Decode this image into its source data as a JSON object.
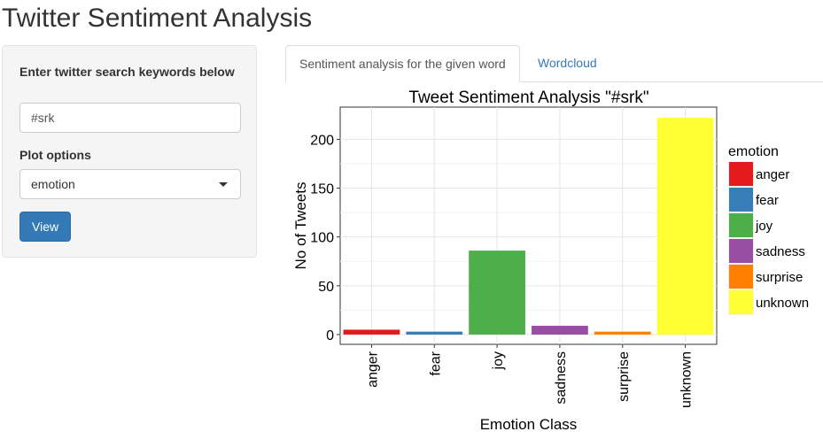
{
  "app": {
    "title": "Twitter Sentiment Analysis"
  },
  "sidebar": {
    "search_label": "Enter twitter search keywords below",
    "search_value": "#srk",
    "plot_options_label": "Plot options",
    "plot_option_selected": "emotion",
    "view_button": "View"
  },
  "tabs": [
    {
      "label": "Sentiment analysis for the given word",
      "active": true
    },
    {
      "label": "Wordcloud",
      "active": false
    }
  ],
  "chart_data": {
    "type": "bar",
    "title": "Tweet Sentiment Analysis \"#srk\"",
    "xlabel": "Emotion Class",
    "ylabel": "No of Tweets",
    "categories": [
      "anger",
      "fear",
      "joy",
      "sadness",
      "surprise",
      "unknown"
    ],
    "values": [
      5,
      3,
      86,
      9,
      3,
      222
    ],
    "colors": [
      "#e41a1c",
      "#377eb8",
      "#4daf4a",
      "#984ea3",
      "#ff7f00",
      "#ffff33"
    ],
    "yticks": [
      0,
      50,
      100,
      150,
      200
    ],
    "ylim": [
      -10,
      233
    ],
    "grid": true,
    "legend": {
      "title": "emotion",
      "position": "right",
      "entries": [
        "anger",
        "fear",
        "joy",
        "sadness",
        "surprise",
        "unknown"
      ]
    }
  }
}
